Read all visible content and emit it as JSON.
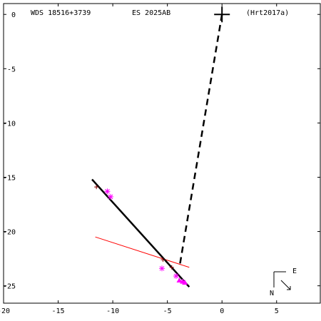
{
  "header": {
    "wds_id": "WDS 18516+3739",
    "discoverer": "ES 2025AB",
    "reference": "(Hrt2017a)"
  },
  "compass": {
    "east_label": "E",
    "north_label": "N"
  },
  "chart_data": {
    "type": "scatter",
    "title": "",
    "xlabel": "",
    "ylabel": "",
    "xlim": [
      -20,
      9
    ],
    "ylim": [
      -26.6,
      1.0
    ],
    "x_ticks": [
      -20,
      -15,
      -10,
      -5,
      0,
      5
    ],
    "y_ticks": [
      0,
      -5,
      -10,
      -15,
      -20,
      -25
    ],
    "primary": {
      "x": 0,
      "y": 0
    },
    "orbit_line": {
      "color": "#000000",
      "points": [
        [
          -11.9,
          -15.2
        ],
        [
          -3.0,
          -25.1
        ]
      ]
    },
    "line_of_nodes": {
      "color": "#000000",
      "style": "dashed",
      "points": [
        [
          0,
          0
        ],
        [
          -3.9,
          -23.3
        ]
      ]
    },
    "residual_line": {
      "color": "#ff0000",
      "points": [
        [
          -11.6,
          -20.5
        ],
        [
          -3.0,
          -23.3
        ]
      ]
    },
    "observations_asterisk": {
      "color": "#ff00ff",
      "points": [
        [
          -10.5,
          -16.3
        ],
        [
          -10.2,
          -16.8
        ],
        [
          -5.5,
          -23.4
        ],
        [
          -4.2,
          -24.1
        ]
      ]
    },
    "observations_triangle": {
      "color": "#ff00ff",
      "points": [
        [
          -3.9,
          -24.5
        ],
        [
          -3.6,
          -24.6
        ],
        [
          -3.4,
          -24.7
        ]
      ]
    },
    "observations_plus": {
      "color": "#800000",
      "points": [
        [
          -11.5,
          -15.9
        ],
        [
          -5.4,
          -22.6
        ],
        [
          -4.6,
          -23.3
        ]
      ]
    }
  }
}
